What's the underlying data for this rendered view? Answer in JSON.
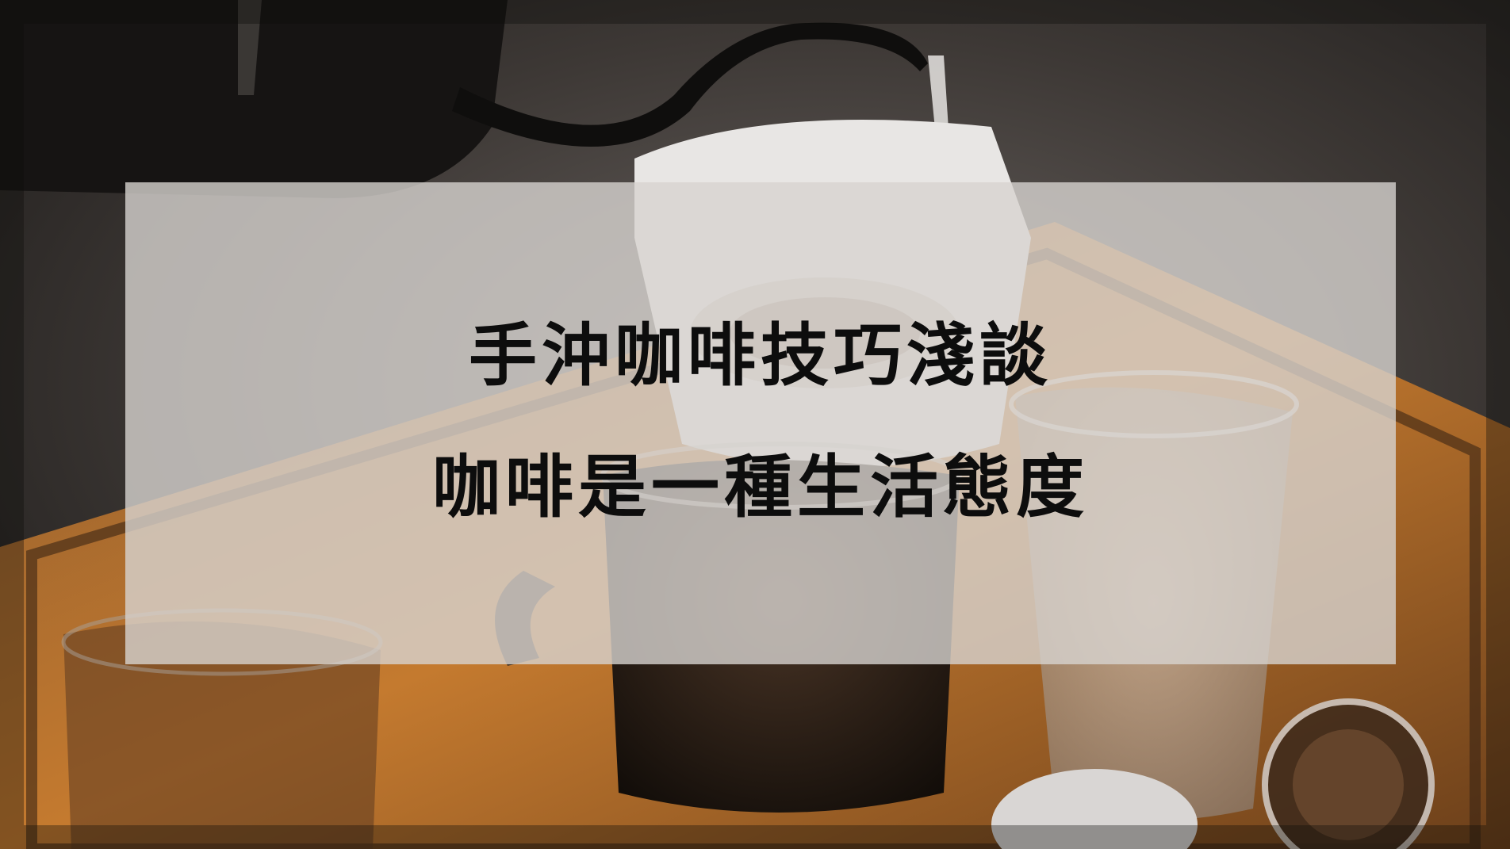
{
  "banner": {
    "title": "手沖咖啡技巧淺談",
    "subtitle": "咖啡是一種生活態度"
  },
  "colors": {
    "panel_overlay": "#d7d3d0",
    "text": "#0d0d0d",
    "background_dark": "#2a2623",
    "tray_wood": "#c6782e"
  },
  "scene": {
    "description_icon": "coffee-pour-over-photo"
  }
}
